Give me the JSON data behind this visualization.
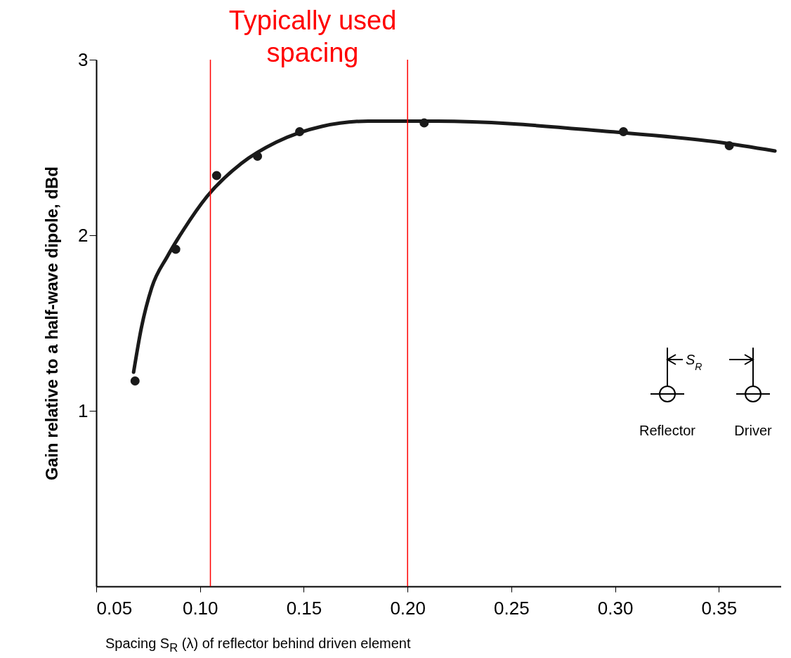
{
  "chart_data": {
    "type": "line",
    "xlabel": "Spacing S$_{R}$ (λ) of reflector behind driven element",
    "ylabel": "Gain relative to a half-wave dipole, dBd",
    "xlim": [
      0.05,
      0.38
    ],
    "xticks": [
      0.05,
      {
        "value": 0.1,
        "label": "0.10"
      },
      0.15,
      {
        "value": 0.2,
        "label": "0.20"
      },
      0.25,
      {
        "value": 0.3,
        "label": "0.30"
      },
      0.35
    ],
    "ylim": [
      0,
      3
    ],
    "yticks": [
      1,
      2,
      3
    ],
    "series": [
      {
        "type": "line",
        "color": "#1a1a1a",
        "marker": "none",
        "x": [
          0.068,
          0.0717,
          0.0767,
          0.0843,
          0.092,
          0.1033,
          0.12,
          0.1367,
          0.1587,
          0.181,
          0.202,
          0.2143,
          0.2977,
          0.35,
          0.377
        ],
        "values": [
          1.22,
          1.47,
          1.7,
          1.88,
          2.03,
          2.22,
          2.41,
          2.53,
          2.62,
          2.65,
          2.65,
          2.65,
          2.59,
          2.53,
          2.48
        ]
      },
      {
        "type": "scatter",
        "color": "#1a1a1a",
        "marker": "circle",
        "x": [
          0.0687,
          0.0883,
          0.108,
          0.1277,
          0.148,
          0.208,
          0.304,
          0.355
        ],
        "values": [
          1.17,
          1.92,
          2.34,
          2.45,
          2.59,
          2.64,
          2.59,
          2.51
        ]
      }
    ],
    "ref_lines": [
      {
        "axis": "x",
        "value": 0.105,
        "color": "#ff0000"
      },
      {
        "axis": "x",
        "value": 0.2,
        "color": "#ff0000"
      }
    ],
    "annotations": [
      "Typically used spacing",
      "S$_{R}$",
      "Reflector",
      "Driver"
    ]
  }
}
